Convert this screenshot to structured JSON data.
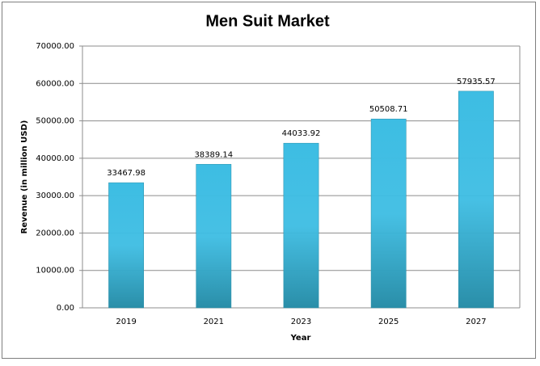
{
  "chart_data": {
    "type": "bar",
    "title": "Men Suit Market",
    "x_label": "Year",
    "y_label": "Revenue (in million USD)",
    "categories": [
      "2019",
      "2021",
      "2023",
      "2025",
      "2027"
    ],
    "values": [
      33467.98,
      38389.14,
      44033.92,
      50508.71,
      57935.57
    ],
    "color": "#3dbde3",
    "ylim": [
      0,
      70000
    ],
    "yticks": [
      {
        "value": 0,
        "label": "0.00"
      },
      {
        "value": 10000,
        "label": "10000.00"
      },
      {
        "value": 20000,
        "label": "20000.00"
      },
      {
        "value": 30000,
        "label": "30000.00"
      },
      {
        "value": 40000,
        "label": "40000.00"
      },
      {
        "value": 50000,
        "label": "50000.00"
      },
      {
        "value": 60000,
        "label": "60000.00"
      },
      {
        "value": 70000,
        "label": "70000.00"
      }
    ],
    "grid": true
  }
}
